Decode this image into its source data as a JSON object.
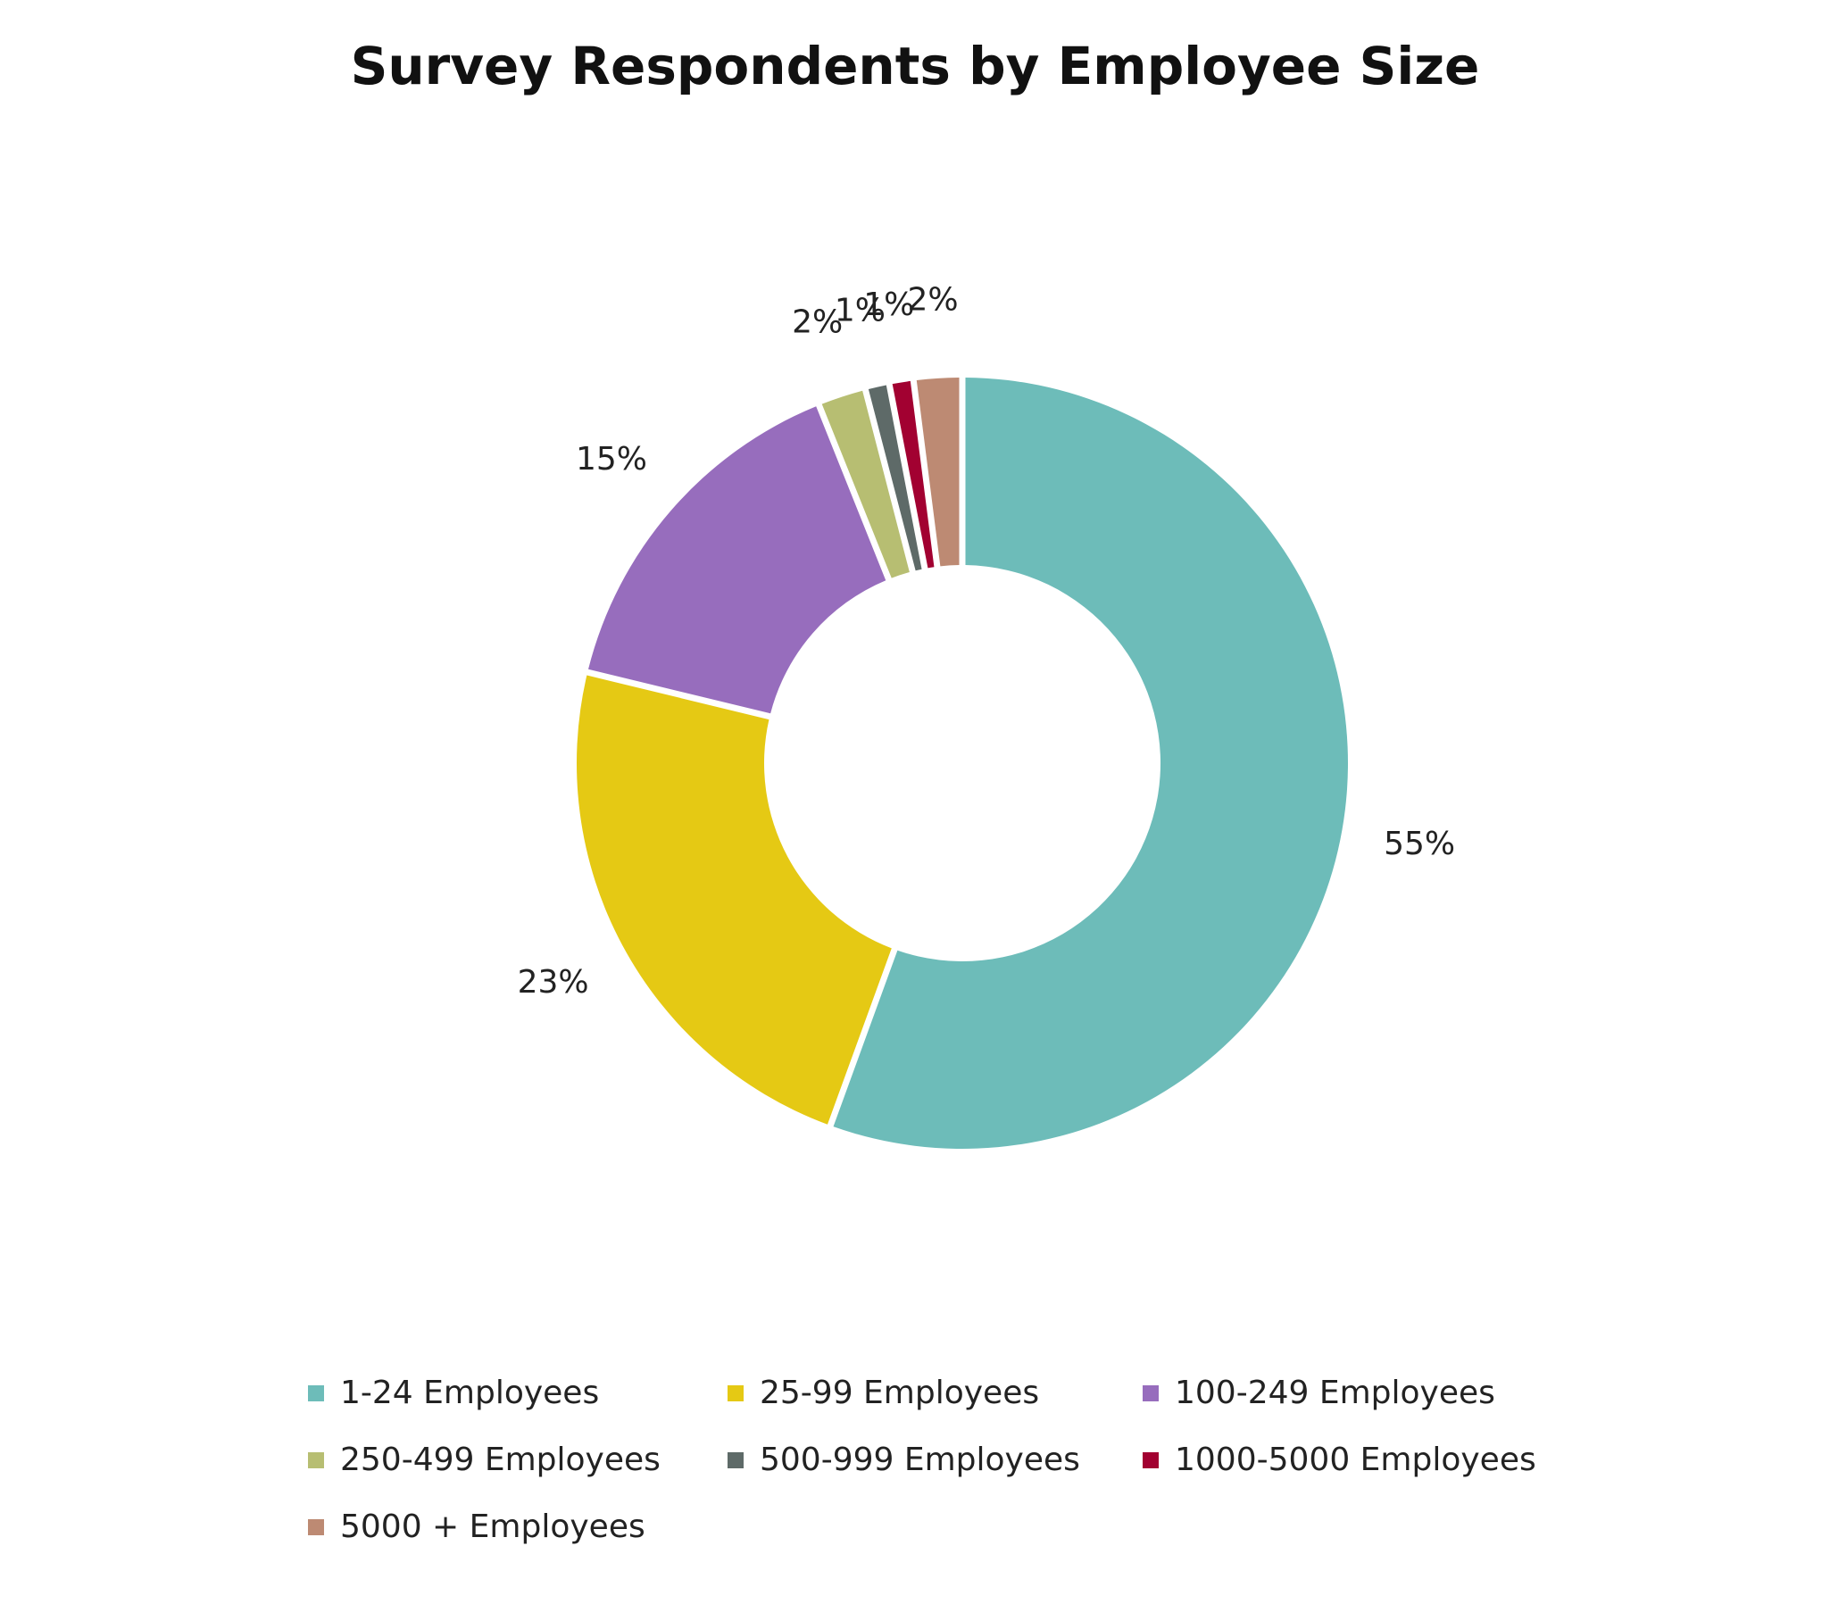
{
  "chart_data": {
    "type": "pie",
    "variant": "donut",
    "title": "Survey Respondents by Employee Size",
    "legend_position": "bottom",
    "slices": [
      {
        "label": "1-24 Employees",
        "value": 55,
        "value_label": "55%",
        "color": "#6DBCB9"
      },
      {
        "label": "25-99 Employees",
        "value": 23,
        "value_label": "23%",
        "color": "#E5C914"
      },
      {
        "label": "100-249 Employees",
        "value": 15,
        "value_label": "15%",
        "color": "#976DBD"
      },
      {
        "label": "250-499 Employees",
        "value": 2,
        "value_label": "2%",
        "color": "#B7BE72"
      },
      {
        "label": "500-999 Employees",
        "value": 1,
        "value_label": "1%",
        "color": "#5E6A68"
      },
      {
        "label": "1000-5000 Employees",
        "value": 1,
        "value_label": "1%",
        "color": "#A20131"
      },
      {
        "label": "5000 + Employees",
        "value": 2,
        "value_label": "2%",
        "color": "#BD8A73"
      }
    ]
  }
}
